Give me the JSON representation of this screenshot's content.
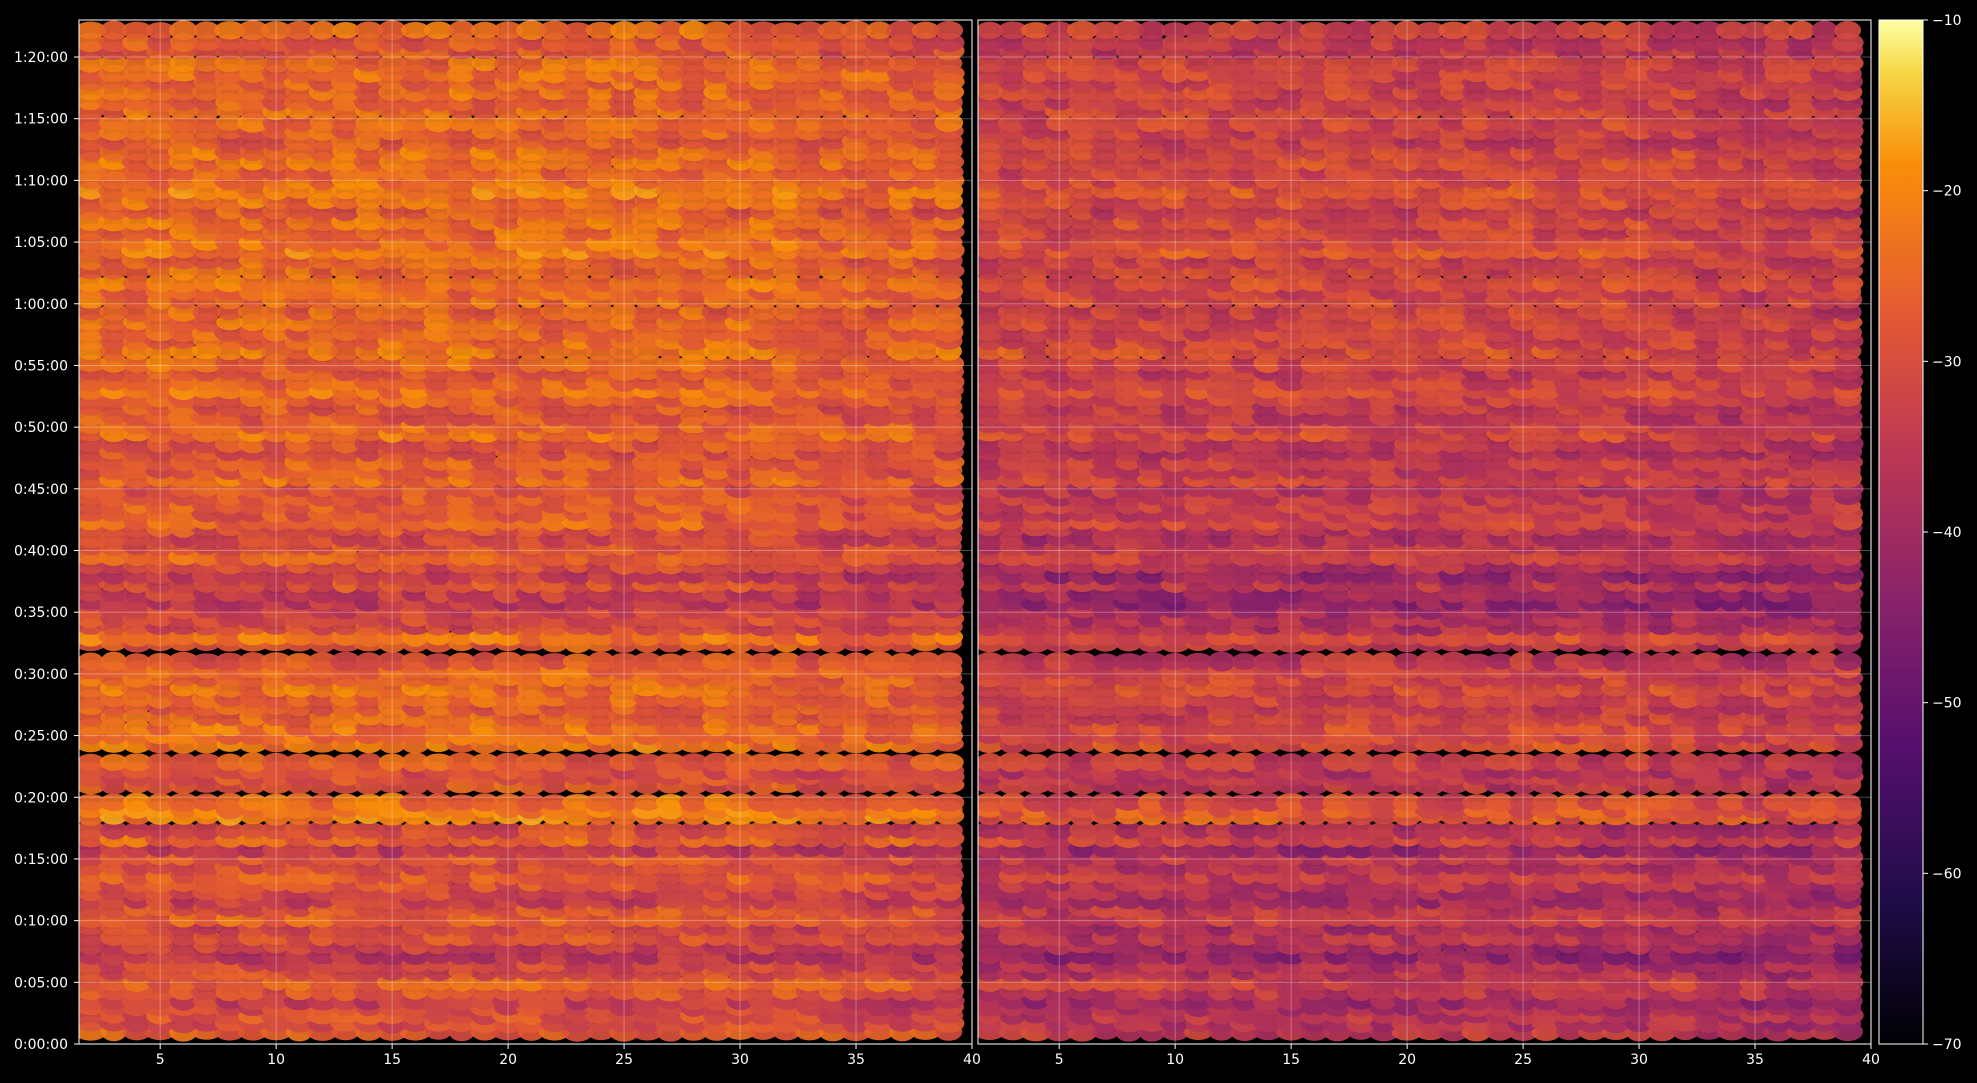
{
  "chart_data": {
    "type": "heatmap",
    "colormap": "inferno",
    "background": "#000000",
    "grid": true,
    "panels": [
      {
        "name": "",
        "xlim": [
          1.5,
          40
        ],
        "xticks": [
          5,
          10,
          15,
          20,
          25,
          30,
          35,
          40
        ],
        "intensity_offset": 0
      },
      {
        "name": "",
        "xlim": [
          1.5,
          40
        ],
        "xticks": [
          5,
          10,
          15,
          20,
          25,
          30,
          35,
          40
        ],
        "intensity_offset": -6
      }
    ],
    "y_axis": {
      "unit": "time",
      "ylim_seconds": [
        0,
        4980
      ],
      "tick_seconds": [
        0,
        300,
        600,
        900,
        1200,
        1500,
        1800,
        2100,
        2400,
        2700,
        3000,
        3300,
        3600,
        3900,
        4200,
        4500,
        4800
      ],
      "tick_labels": [
        "0:00:00",
        "0:05:00",
        "0:10:00",
        "0:15:00",
        "0:20:00",
        "0:25:00",
        "0:30:00",
        "0:35:00",
        "0:40:00",
        "0:45:00",
        "0:50:00",
        "0:55:00",
        "1:00:00",
        "1:05:00",
        "1:10:00",
        "1:15:00",
        "1:20:00"
      ]
    },
    "colorbar": {
      "range": [
        -70,
        -10
      ],
      "ticks": [
        -10,
        -20,
        -30,
        -40,
        -50,
        -60,
        -70
      ],
      "tick_labels": [
        "−10",
        "−20",
        "−30",
        "−40",
        "−50",
        "−60",
        "−70"
      ]
    },
    "row_levels": {
      "note_free": true,
      "time_seconds": [
        60,
        100,
        140,
        180,
        210,
        255,
        300,
        350,
        390,
        430,
        480,
        520,
        570,
        610,
        660,
        700,
        740,
        780,
        820,
        865,
        910,
        950,
        1000,
        1040,
        1110,
        1140,
        1175,
        1260,
        1300,
        1330,
        1370,
        1460,
        1500,
        1540,
        1590,
        1640,
        1680,
        1730,
        1780,
        1820,
        1860,
        1950,
        1980,
        2030,
        2070,
        2110,
        2150,
        2190,
        2240,
        2280,
        2330,
        2370,
        2420,
        2460,
        2510,
        2540,
        2580,
        2620,
        2660,
        2700,
        2750,
        2790,
        2830,
        2880,
        2920,
        2970,
        3010,
        3050,
        3100,
        3140,
        3180,
        3220,
        3270,
        3310,
        3370,
        3420,
        3460,
        3510,
        3560,
        3620,
        3660,
        3700,
        3760,
        3810,
        3860,
        3900,
        3950,
        4000,
        4050,
        4100,
        4150,
        4200,
        4240,
        4290,
        4340,
        4390,
        4440,
        4480,
        4540,
        4580,
        4630,
        4680,
        4720,
        4770,
        4830,
        4870,
        4930
      ],
      "mean_db": [
        -32,
        -35,
        -34,
        -36,
        -38,
        -33,
        -31,
        -35,
        -36,
        -40,
        -37,
        -34,
        -36,
        -31,
        -33,
        -38,
        -36,
        -34,
        -32,
        -35,
        -33,
        -39,
        -30,
        -35,
        -26,
        -27,
        -29,
        -33,
        -34,
        -35,
        -32,
        -28,
        -30,
        -29,
        -31,
        -32,
        -31,
        -29,
        -30,
        -30,
        -33,
        -32,
        -28,
        -36,
        -35,
        -37,
        -40,
        -38,
        -34,
        -39,
        -35,
        -31,
        -33,
        -36,
        -34,
        -30,
        -33,
        -32,
        -33,
        -34,
        -30,
        -33,
        -32,
        -34,
        -33,
        -29,
        -31,
        -33,
        -33,
        -31,
        -29,
        -31,
        -33,
        -30,
        -28,
        -30,
        -31,
        -30,
        -31,
        -29,
        -31,
        -29,
        -30,
        -31,
        -27,
        -29,
        -30,
        -29,
        -32,
        -29,
        -27,
        -29,
        -31,
        -29,
        -29,
        -32,
        -31,
        -30,
        -30,
        -32,
        -30,
        -31,
        -30,
        -30,
        -33,
        -33,
        -30
      ]
    }
  }
}
